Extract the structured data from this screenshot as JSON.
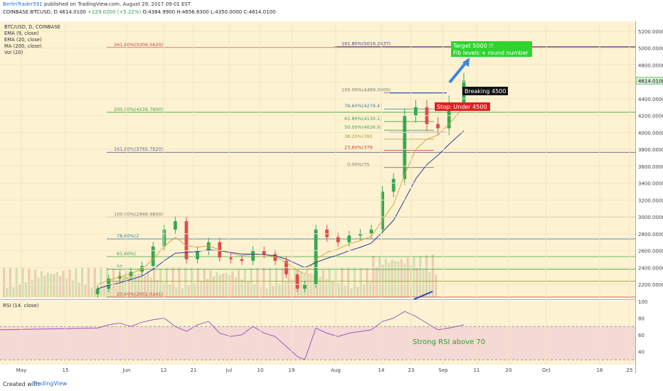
{
  "header": {
    "author": "BerlinTrader591",
    "published": "published on TradingView.com, August 29, 2017 09:01 EST",
    "symbol_line": "COINBASE:BTCUSD, D  4614.0100 ",
    "change": "+229.0200 (+5.22%)",
    "ohlc": " O:4384.9900 H:4656.8300 L:4350.0000 C:4614.0100"
  },
  "footer": {
    "created": "Created with",
    "brand": "TradingView"
  },
  "colors": {
    "bg": "#fdf3d2",
    "candle_up": "#36a852",
    "candle_down": "#e04b4b",
    "ema9": "#e0a040",
    "ema20": "#303a9a",
    "rsi": "#9b59c8",
    "rsi_band": "#f4d9d4",
    "annotation_green": "#2fd42f",
    "annotation_red": "#e02020",
    "annotation_dark": "#111111",
    "arrow_blue": "#3a86e0"
  },
  "legend": [
    "BTC/USD, D, COINBASE",
    "EMA (9, close)",
    "EMA (20, close)",
    "MA (200, close)",
    "Vol (20)"
  ],
  "chart_data": {
    "type": "line",
    "title": "BTC/USD, D, COINBASE",
    "price_ylim": [
      2050,
      5300
    ],
    "price_ticks": [
      "5200.0000",
      "5000.0000",
      "4800.0000",
      "4600.0000",
      "4400.0000",
      "4200.0000",
      "4000.0000",
      "3800.0000",
      "3600.0000",
      "3400.0000",
      "3200.0000",
      "3000.0000",
      "2800.0000",
      "2600.0000",
      "2400.0000",
      "2200.0000"
    ],
    "last_price_label": "4614.0100",
    "x_ticks": [
      "May",
      "15",
      "Jun",
      "12",
      "21",
      "Jul",
      "10",
      "19",
      "Aug",
      "14",
      "23",
      "Sep",
      "11",
      "20",
      "Oct",
      "16",
      "25"
    ],
    "series": [
      {
        "name": "BTC/USD",
        "x": [
          "May 22",
          "May 25",
          "May 28",
          "May 31",
          "Jun 3",
          "Jun 6",
          "Jun 9",
          "Jun 12",
          "Jun 15",
          "Jun 18",
          "Jun 21",
          "Jun 24",
          "Jun 27",
          "Jun 30",
          "Jul 3",
          "Jul 6",
          "Jul 9",
          "Jul 12",
          "Jul 15",
          "Jul 17",
          "Jul 20",
          "Jul 23",
          "Jul 26",
          "Jul 29",
          "Aug 1",
          "Aug 4",
          "Aug 7",
          "Aug 10",
          "Aug 13",
          "Aug 16",
          "Aug 19",
          "Aug 22",
          "Aug 25",
          "Aug 29"
        ],
        "values": [
          2150,
          2270,
          2300,
          2350,
          2420,
          2650,
          2850,
          2950,
          2500,
          2600,
          2700,
          2520,
          2500,
          2480,
          2600,
          2560,
          2480,
          2320,
          2150,
          2200,
          2850,
          2760,
          2700,
          2780,
          2800,
          2850,
          3300,
          3450,
          4200,
          4300,
          4100,
          4050,
          4350,
          4614
        ]
      },
      {
        "name": "EMA (9, close)",
        "values": [
          2200,
          2250,
          2290,
          2330,
          2380,
          2500,
          2650,
          2760,
          2660,
          2640,
          2660,
          2610,
          2570,
          2540,
          2560,
          2555,
          2530,
          2460,
          2370,
          2320,
          2500,
          2580,
          2620,
          2680,
          2720,
          2770,
          2960,
          3150,
          3500,
          3800,
          3920,
          3970,
          4100,
          4300
        ]
      },
      {
        "name": "EMA (20, close)",
        "values": [
          2150,
          2190,
          2220,
          2260,
          2300,
          2380,
          2480,
          2570,
          2580,
          2590,
          2610,
          2600,
          2580,
          2560,
          2560,
          2555,
          2540,
          2500,
          2440,
          2400,
          2460,
          2510,
          2550,
          2600,
          2640,
          2690,
          2820,
          2960,
          3200,
          3450,
          3620,
          3730,
          3860,
          4020
        ]
      }
    ],
    "fib_levels": [
      {
        "label": "261.80%(5006.5620)",
        "value": 5006.562
      },
      {
        "label": "161.80%(5016.2637)",
        "value": 5016.2637
      },
      {
        "label": "100.00%(4469.0000)",
        "value": 4469
      },
      {
        "label": "200.00%(4239.7600)",
        "value": 4239.76
      },
      {
        "label": "78.60%(4279.4)",
        "value": 4279.4
      },
      {
        "label": "61.80%(4130.1)",
        "value": 4130.1
      },
      {
        "label": "50.00%(4026.9)",
        "value": 4026.9
      },
      {
        "label": "38.20%(392",
        "value": 3920
      },
      {
        "label": "23.60%(379",
        "value": 3790
      },
      {
        "label": "161.80%(3765.7820)",
        "value": 3765.782
      },
      {
        "label": "0.00%(35",
        "value": 3585
      },
      {
        "label": "100.00%(2998.9800)",
        "value": 2998.98
      },
      {
        "label": "78.60%(2",
        "value": 2740
      },
      {
        "label": "61.80%(",
        "value": 2530
      },
      {
        "label": "50",
        "value": 2380
      },
      {
        "label": "38.",
        "value": 2240
      },
      {
        "label": "23.60%(2051.0241)",
        "value": 2051.0241
      }
    ],
    "rsi": {
      "name": "RSI (14, close)",
      "ylim": [
        25,
        100
      ],
      "ticks": [
        "100",
        "80",
        "60",
        "40"
      ],
      "upper": 70,
      "lower": 30,
      "values": [
        68,
        72,
        74,
        70,
        75,
        78,
        80,
        70,
        64,
        72,
        76,
        62,
        58,
        60,
        70,
        62,
        58,
        46,
        34,
        30,
        68,
        62,
        58,
        62,
        64,
        66,
        76,
        80,
        88,
        82,
        74,
        66,
        68,
        72
      ]
    }
  },
  "annotations": {
    "target": [
      "Target 5000 !!",
      "Fib levels + round number"
    ],
    "breaking": "Breaking 4500",
    "stop": "Stop: Under 4500",
    "rsi_note": "Strong RSI above 70"
  }
}
